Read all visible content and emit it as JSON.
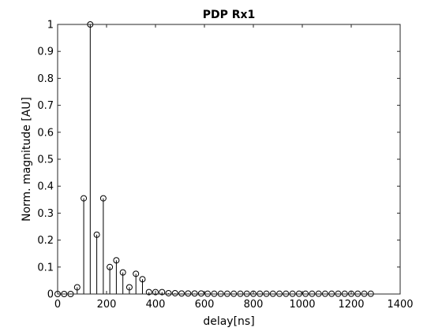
{
  "chart_data": {
    "type": "stem",
    "title": "PDP Rx1",
    "xlabel": "delay[ns]",
    "ylabel": "Norm. magnitude [AU]",
    "xlim": [
      0,
      1400
    ],
    "ylim": [
      0,
      1
    ],
    "xticks": [
      0,
      200,
      400,
      600,
      800,
      1000,
      1200,
      1400
    ],
    "yticks": [
      0,
      0.1,
      0.2,
      0.3,
      0.4,
      0.5,
      0.6,
      0.7,
      0.8,
      0.9,
      1
    ],
    "xtick_labels": [
      "0",
      "200",
      "400",
      "600",
      "800",
      "1000",
      "1200",
      "1400"
    ],
    "ytick_labels": [
      "0",
      "0.1",
      "0.2",
      "0.3",
      "0.4",
      "0.5",
      "0.6",
      "0.7",
      "0.8",
      "0.9",
      "1"
    ],
    "grid": false,
    "marker": "circle",
    "color": "#000000",
    "x": [
      0,
      26.7,
      53.3,
      80,
      106.7,
      133.3,
      160,
      186.7,
      213.3,
      240,
      266.7,
      293.3,
      320,
      346.7,
      373.3,
      400,
      426.7,
      453.3,
      480,
      506.7,
      533.3,
      560,
      586.7,
      613.3,
      640,
      666.7,
      693.3,
      720,
      746.7,
      773.3,
      800,
      826.7,
      853.3,
      880,
      906.7,
      933.3,
      960,
      986.7,
      1013.3,
      1040,
      1066.7,
      1093.3,
      1120,
      1146.7,
      1173.3,
      1200,
      1226.7,
      1253.3,
      1280
    ],
    "y": [
      0,
      0,
      0,
      0.025,
      0.355,
      1.0,
      0.22,
      0.355,
      0.1,
      0.125,
      0.08,
      0.025,
      0.075,
      0.055,
      0.007,
      0.007,
      0.007,
      0.003,
      0.003,
      0.002,
      0.002,
      0.002,
      0.002,
      0.001,
      0.001,
      0.001,
      0.001,
      0.001,
      0.001,
      0.001,
      0.001,
      0.001,
      0.001,
      0.001,
      0.001,
      0.001,
      0.001,
      0.001,
      0.001,
      0.001,
      0.001,
      0.001,
      0.001,
      0.001,
      0.001,
      0.001,
      0.001,
      0.001,
      0.001
    ]
  }
}
